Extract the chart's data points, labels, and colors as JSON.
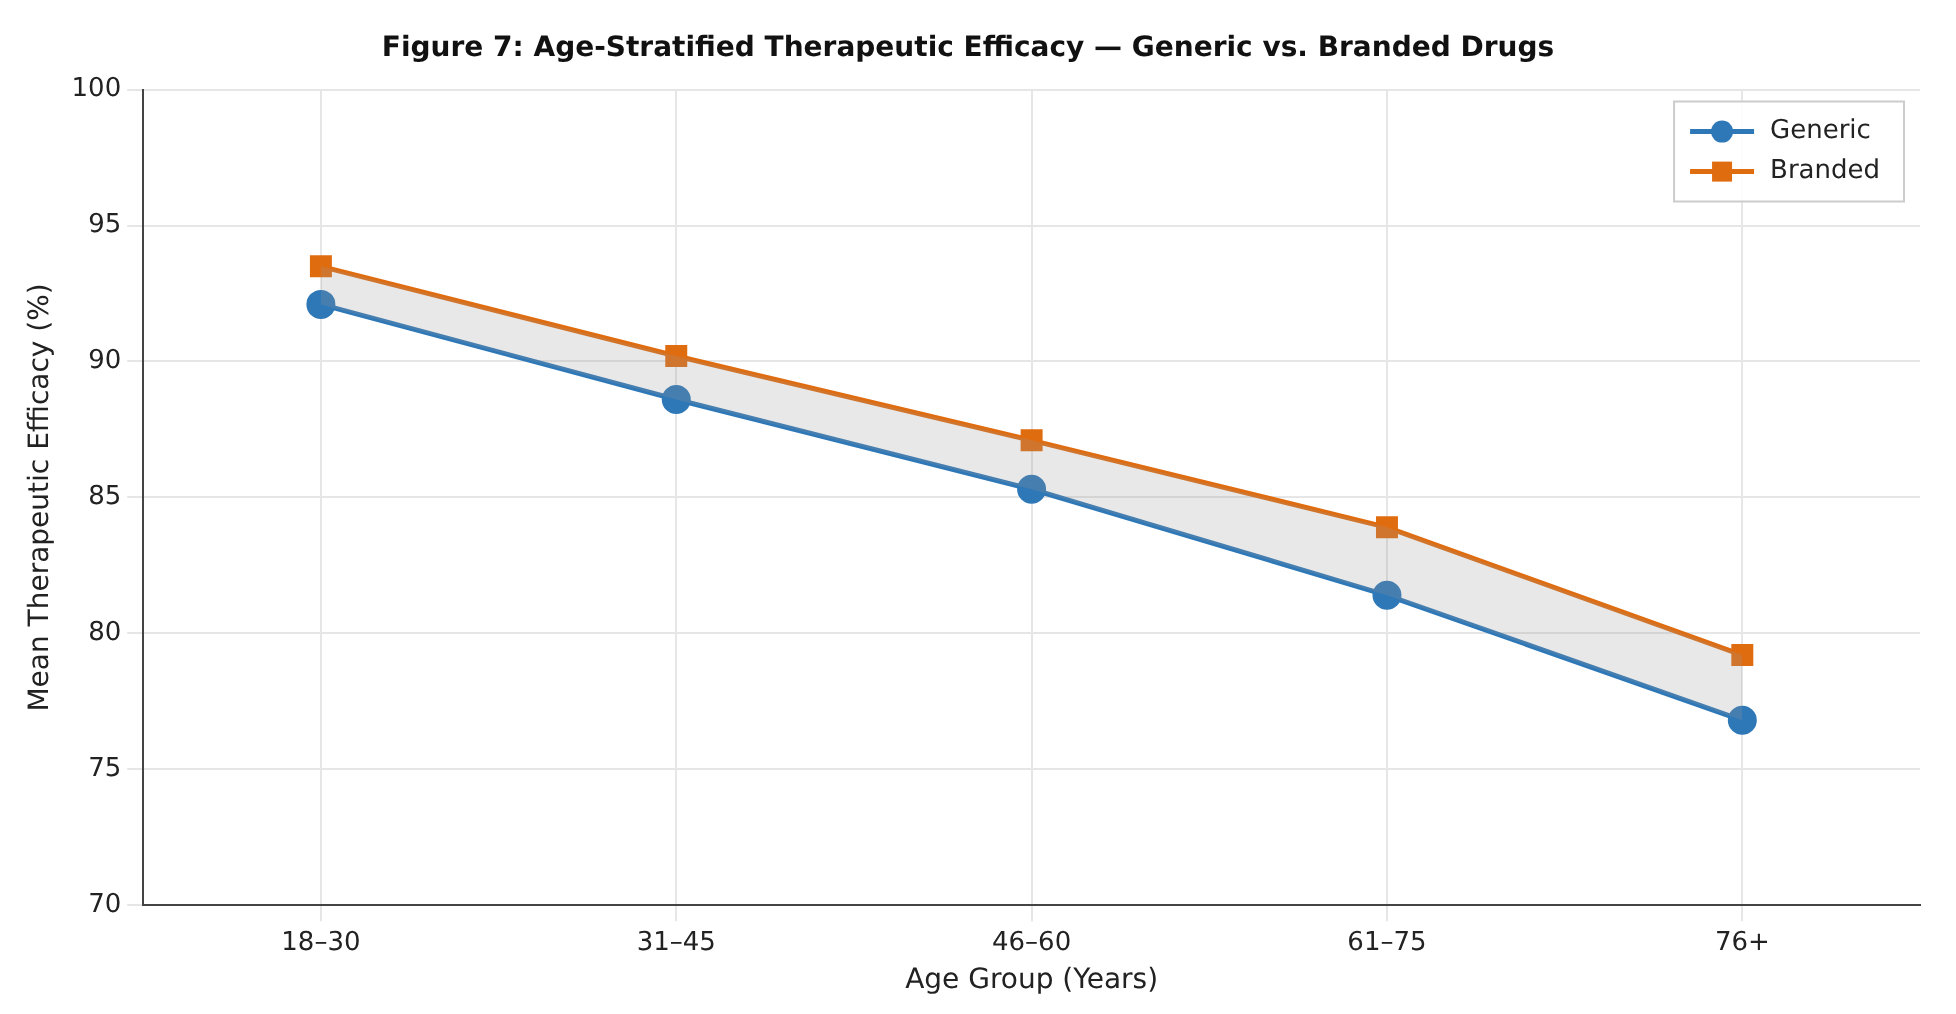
{
  "chart_data": {
    "type": "line",
    "title": "Figure 7: Age-Stratified Therapeutic Efficacy — Generic vs. Branded Drugs",
    "xlabel": "Age Group (Years)",
    "ylabel": "Mean Therapeutic Efficacy (%)",
    "categories": [
      "18–30",
      "31–45",
      "46–60",
      "61–75",
      "76+"
    ],
    "series": [
      {
        "name": "Generic",
        "color": "#2f78b7",
        "marker": "circle",
        "values": [
          92.1,
          88.6,
          85.3,
          81.4,
          76.8
        ]
      },
      {
        "name": "Branded",
        "color": "#e06c10",
        "marker": "square",
        "values": [
          93.5,
          90.2,
          87.1,
          83.9,
          79.2
        ],
        "lower": [
          92.1,
          88.6,
          85.3,
          81.4,
          76.8
        ],
        "upper": [
          93.5,
          90.2,
          87.1,
          83.9,
          79.2
        ]
      }
    ],
    "ylim": [
      70,
      100
    ],
    "yticks": [
      70,
      75,
      80,
      85,
      90,
      95,
      100
    ],
    "grid": true,
    "legend": "top right",
    "line_style": "solid"
  }
}
